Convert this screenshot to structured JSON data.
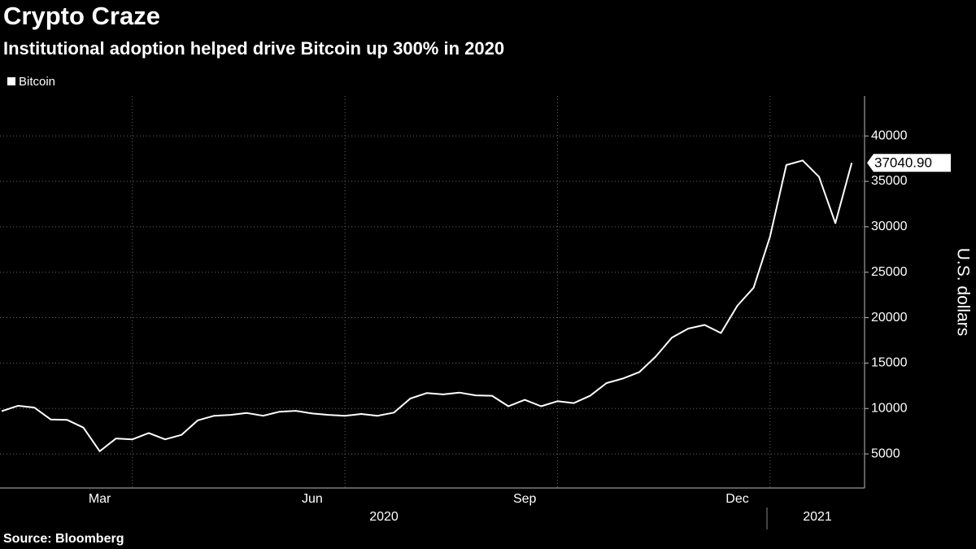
{
  "chart_data": {
    "type": "line",
    "title": "Crypto Craze",
    "subtitle": "Institutional adoption helped drive Bitcoin up 300% in 2020",
    "source": "Source: Bloomberg",
    "y_label": "U.S. dollars",
    "x_group_labels": [
      "2020",
      "2021"
    ],
    "categories": [
      null,
      null,
      null,
      null,
      null,
      null,
      "Mar",
      null,
      null,
      null,
      null,
      null,
      null,
      null,
      null,
      null,
      null,
      null,
      null,
      "Jun",
      null,
      null,
      null,
      null,
      null,
      null,
      null,
      null,
      null,
      null,
      null,
      null,
      "Sep",
      null,
      null,
      null,
      null,
      null,
      null,
      null,
      null,
      null,
      null,
      null,
      null,
      "Dec",
      null,
      null,
      null,
      null,
      null,
      null,
      null
    ],
    "series": [
      {
        "name": "Bitcoin",
        "color": "#ffffff",
        "values": [
          9700,
          10300,
          10100,
          8800,
          8750,
          7900,
          5300,
          6700,
          6600,
          7300,
          6600,
          7100,
          8700,
          9200,
          9300,
          9500,
          9200,
          9650,
          9750,
          9450,
          9300,
          9200,
          9400,
          9200,
          9550,
          11100,
          11700,
          11550,
          11750,
          11450,
          11400,
          10250,
          10950,
          10250,
          10800,
          10600,
          11400,
          12800,
          13300,
          14000,
          15700,
          17800,
          18800,
          19200,
          18300,
          21300,
          23300,
          28900,
          36800,
          37300,
          35500,
          30400,
          37040.9
        ],
        "value_labels": [
          null,
          null,
          null,
          null,
          null,
          null,
          null,
          null,
          null,
          null,
          null,
          null,
          null,
          null,
          null,
          null,
          null,
          null,
          null,
          null,
          null,
          null,
          null,
          null,
          null,
          null,
          null,
          null,
          null,
          null,
          null,
          null,
          null,
          null,
          null,
          null,
          null,
          null,
          null,
          null,
          null,
          null,
          null,
          null,
          null,
          null,
          null,
          null,
          null,
          null,
          null,
          null,
          "37040.90"
        ]
      }
    ],
    "ylim": [
      1250,
      44400
    ],
    "yticks": [
      5000,
      10000,
      15000,
      20000,
      25000,
      30000,
      35000,
      40000
    ],
    "grid": true,
    "legend": "top-left"
  }
}
